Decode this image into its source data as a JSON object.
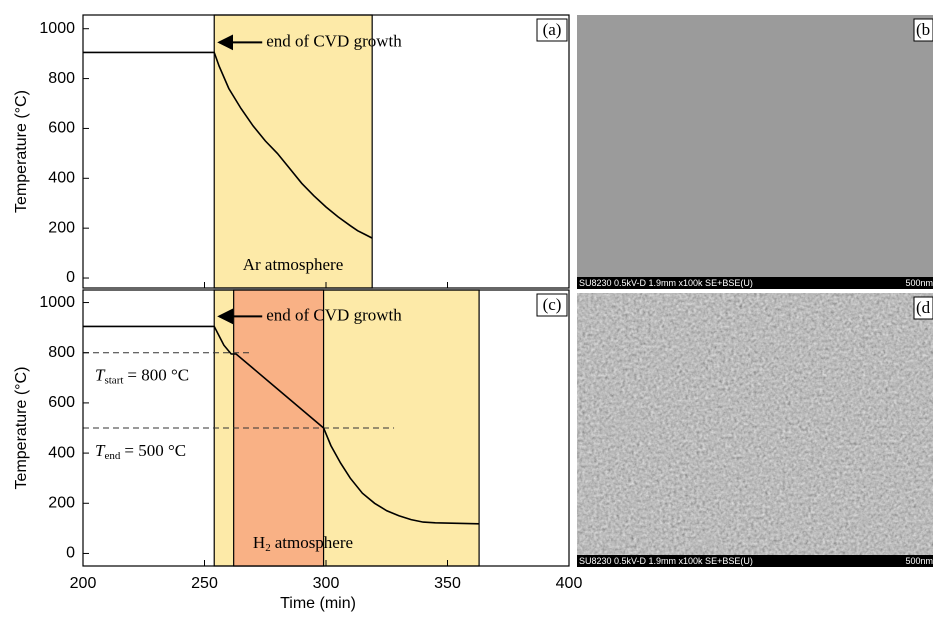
{
  "chart_data": [
    {
      "type": "line",
      "panel_label": "(a)",
      "ylabel": "Temperature (°C)",
      "xlim": [
        200,
        400
      ],
      "xticks": [
        200,
        250,
        300,
        350,
        400
      ],
      "ylim": [
        -40,
        1055
      ],
      "yticks": [
        0,
        200,
        400,
        600,
        800,
        1000
      ],
      "spans": [
        {
          "start": 254,
          "end": 319,
          "color": "#fdeaa8"
        }
      ],
      "series": [
        {
          "color": "#000000",
          "x": [
            200,
            254,
            256,
            260,
            265,
            270,
            275,
            280,
            285,
            290,
            295,
            300,
            305,
            310,
            313,
            316,
            319
          ],
          "values": [
            905,
            905,
            850,
            760,
            680,
            610,
            550,
            500,
            440,
            380,
            330,
            285,
            245,
            210,
            190,
            175,
            160
          ]
        }
      ],
      "arrow_label": "end of CVD growth",
      "region_label": [
        "Ar atmosphere"
      ]
    },
    {
      "type": "line",
      "panel_label": "(c)",
      "ylabel": "Temperature (°C)",
      "xlabel": "Time (min)",
      "xlim": [
        200,
        400
      ],
      "xticks": [
        200,
        250,
        300,
        350,
        400
      ],
      "ylim": [
        -50,
        1050
      ],
      "yticks": [
        0,
        200,
        400,
        600,
        800,
        1000
      ],
      "spans": [
        {
          "start": 254,
          "end": 363,
          "color": "#fdeaa8"
        },
        {
          "start": 262,
          "end": 299,
          "color": "#f9b185"
        }
      ],
      "series": [
        {
          "color": "#000000",
          "x": [
            200,
            254,
            258,
            261,
            263,
            299,
            302,
            306,
            310,
            315,
            320,
            325,
            330,
            335,
            340,
            345,
            363
          ],
          "values": [
            905,
            905,
            830,
            795,
            795,
            500,
            430,
            360,
            300,
            240,
            200,
            170,
            150,
            135,
            125,
            122,
            118
          ]
        }
      ],
      "hlines": [
        {
          "value": 800,
          "label": [
            "T",
            "start",
            "= 800 °C"
          ]
        },
        {
          "value": 500,
          "label": [
            "T",
            "end",
            "= 500 °C"
          ]
        }
      ],
      "arrow_label": "end of CVD growth",
      "region_label": [
        "H",
        "2",
        "atmosphere"
      ]
    }
  ],
  "images": [
    {
      "panel_label": "(b",
      "caption": "SU8230 0.5kV-D 1.9mm x100k SE+BSE(U)",
      "scale": "500nm"
    },
    {
      "panel_label": "(d",
      "caption": "SU8230 0.5kV-D 1.9mm x100k SE+BSE(U)",
      "scale": "500nm"
    }
  ]
}
